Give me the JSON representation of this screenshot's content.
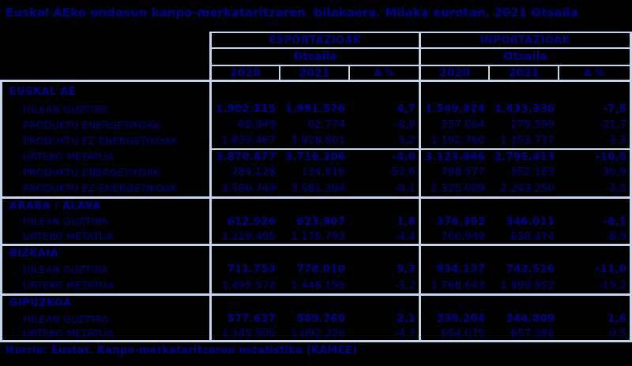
{
  "title": "Euskal AEko ondasun kanpo-merkataritzaren  bilakaera. Milaka eurotan. 2021 Otsaila",
  "footer": "Iturria: Eustat. Kanpo-merkataritzaren estatistika (KAMEE)",
  "colors": {
    "background": "#000000",
    "text": "#00008b",
    "grid_lines": "#c3d6ee"
  },
  "table": {
    "group_headers": {
      "exports": "ESPORTAZIOAK",
      "imports": "INPORTAZIOAK"
    },
    "period_label": "Otsaila",
    "column_headers": [
      "2020",
      "2021",
      "Δ %"
    ],
    "sections": [
      {
        "name": "EUSKAL AE",
        "rows": [
          {
            "label": "HILEAN GUZTIRA",
            "bold": true,
            "sep_above": false,
            "exports": [
              "1.902.315",
              "1.991.576",
              "4,7"
            ],
            "imports": [
              "1.549.824",
              "1.433.336",
              "-7,5"
            ]
          },
          {
            "label": "PRODUKTU ENERGETIKOAK",
            "bold": false,
            "sep_above": false,
            "exports": [
              "68.849",
              "62.774",
              "-8,8"
            ],
            "imports": [
              "357.064",
              "279.599",
              "-21,7"
            ]
          },
          {
            "label": "PRODUKTU EZ-ENERGETIKOAK",
            "bold": false,
            "sep_above": false,
            "exports": [
              "1.833.467",
              "1.928.801",
              "5,2"
            ],
            "imports": [
              "1.192.760",
              "1.153.737",
              "-3,3"
            ]
          },
          {
            "label": "URTEKO METATUA",
            "bold": true,
            "sep_above": true,
            "exports": [
              "3.870.877",
              "3.716.208",
              "-4,0"
            ],
            "imports": [
              "3.123.666",
              "2.795.413",
              "-10,5"
            ]
          },
          {
            "label": "PRODUKTU ENERGETIKOAK",
            "bold": false,
            "sep_above": false,
            "exports": [
              "284.128",
              "134.810",
              "-52,6"
            ],
            "imports": [
              "798.577",
              "552.163",
              "-30,9"
            ]
          },
          {
            "label": "PRODUKTU EZ-ENERGETIKOAK",
            "bold": false,
            "sep_above": false,
            "exports": [
              "3.586.749",
              "3.581.398",
              "-0,1"
            ],
            "imports": [
              "2.325.089",
              "2.243.250",
              "-3,5"
            ]
          }
        ]
      },
      {
        "name": "ARABA / ÁLAVA",
        "rows": [
          {
            "label": "HILEAN GUZTIRA",
            "bold": true,
            "sep_above": false,
            "exports": [
              "612.926",
              "623.807",
              "1,8"
            ],
            "imports": [
              "376.393",
              "346.011",
              "-8,1"
            ]
          },
          {
            "label": "URTEKO METATUA",
            "bold": false,
            "sep_above": false,
            "exports": [
              "1.229.405",
              "1.175.793",
              "-4,4"
            ],
            "imports": [
              "700.949",
              "638.474",
              "-8,9"
            ]
          }
        ]
      },
      {
        "name": "BIZKAIA",
        "rows": [
          {
            "label": "HILEAN GUZTIRA",
            "bold": true,
            "sep_above": false,
            "exports": [
              "711.753",
              "778.010",
              "9,3"
            ],
            "imports": [
              "834.137",
              "742.516",
              "-11,0"
            ]
          },
          {
            "label": "URTEKO METATUA",
            "bold": false,
            "sep_above": false,
            "exports": [
              "1.495.572",
              "1.448.195",
              "-3,2"
            ],
            "imports": [
              "1.768.643",
              "1.499.552",
              "-15,2"
            ]
          }
        ]
      },
      {
        "name": "GIPUZKOA",
        "rows": [
          {
            "label": "HILEAN GUZTIRA",
            "bold": true,
            "sep_above": false,
            "exports": [
              "577.637",
              "589.760",
              "2,1"
            ],
            "imports": [
              "339.294",
              "344.809",
              "1,6"
            ]
          },
          {
            "label": "URTEKO METATUA",
            "bold": false,
            "sep_above": false,
            "exports": [
              "1.145.900",
              "1.092.220",
              "-4,7"
            ],
            "imports": [
              "654.075",
              "657.386",
              "0,5"
            ]
          }
        ]
      }
    ]
  }
}
